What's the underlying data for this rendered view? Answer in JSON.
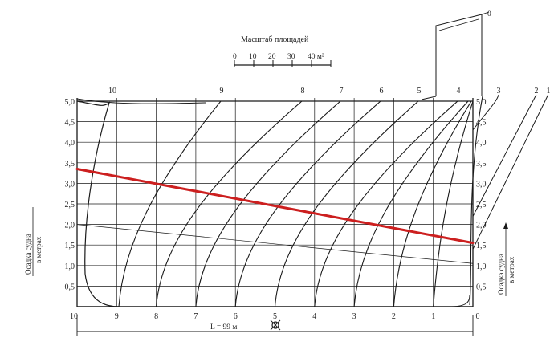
{
  "chart_data": {
    "type": "diagram",
    "scale": {
      "title": "Масштаб площадей",
      "ticks": [
        "0",
        "10",
        "20",
        "30",
        "40 м²"
      ]
    },
    "y_axis": {
      "left_ticks": [
        "5,0",
        "4,5",
        "4,0",
        "3,5",
        "3,0",
        "2,5",
        "2,0",
        "1,5",
        "1,0",
        "0,5"
      ],
      "right_ticks": [
        "5,0",
        "4,5",
        "4,0",
        "3,5",
        "3,0",
        "2,5",
        "2,0",
        "1,5",
        "1,0",
        "0,5"
      ],
      "title_line1": "Осадка судна",
      "title_line2": "в метрах"
    },
    "x_axis": {
      "bottom_labels": [
        "10",
        "9",
        "8",
        "7",
        "6",
        "5",
        "4",
        "3",
        "2",
        "1",
        "0"
      ],
      "top_labels": [
        "10",
        "9",
        "8",
        "7",
        "6",
        "5",
        "4",
        "3",
        "2",
        "1",
        "0"
      ]
    },
    "length_label": "L = 99 м",
    "red_line": {
      "color": "#cc1f1f",
      "left_draft_m": 3.35,
      "right_draft_m": 1.55
    },
    "colors": {
      "ink": "#1a1a1a",
      "grid": "#333333",
      "highlight": "#cc1f1f"
    }
  }
}
